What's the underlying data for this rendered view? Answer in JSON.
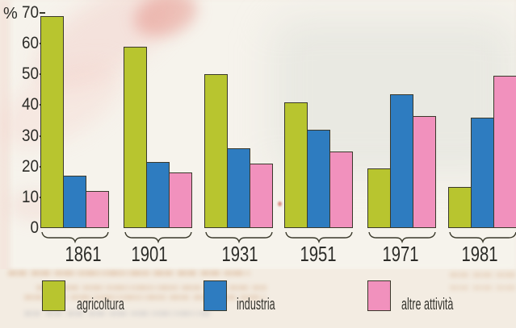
{
  "chart_data": {
    "type": "bar",
    "title": "",
    "unit_label": "%",
    "categories": [
      "1861",
      "1901",
      "1931",
      "1951",
      "1971",
      "1981"
    ],
    "series": [
      {
        "name": "agricoltura",
        "color": "#b8c52f",
        "values": [
          69,
          59,
          50,
          41,
          19.5,
          13.5
        ]
      },
      {
        "name": "industria",
        "color": "#2e7cc0",
        "values": [
          17,
          21.5,
          26,
          32,
          43.5,
          36
        ]
      },
      {
        "name": "altre attività",
        "color": "#f191bd",
        "values": [
          12,
          18,
          21,
          25,
          36.5,
          49.5
        ]
      }
    ],
    "ylim": [
      0,
      70
    ],
    "yticks": [
      0,
      10,
      20,
      30,
      40,
      50,
      60,
      70
    ],
    "grid": false,
    "legend_position": "bottom"
  }
}
